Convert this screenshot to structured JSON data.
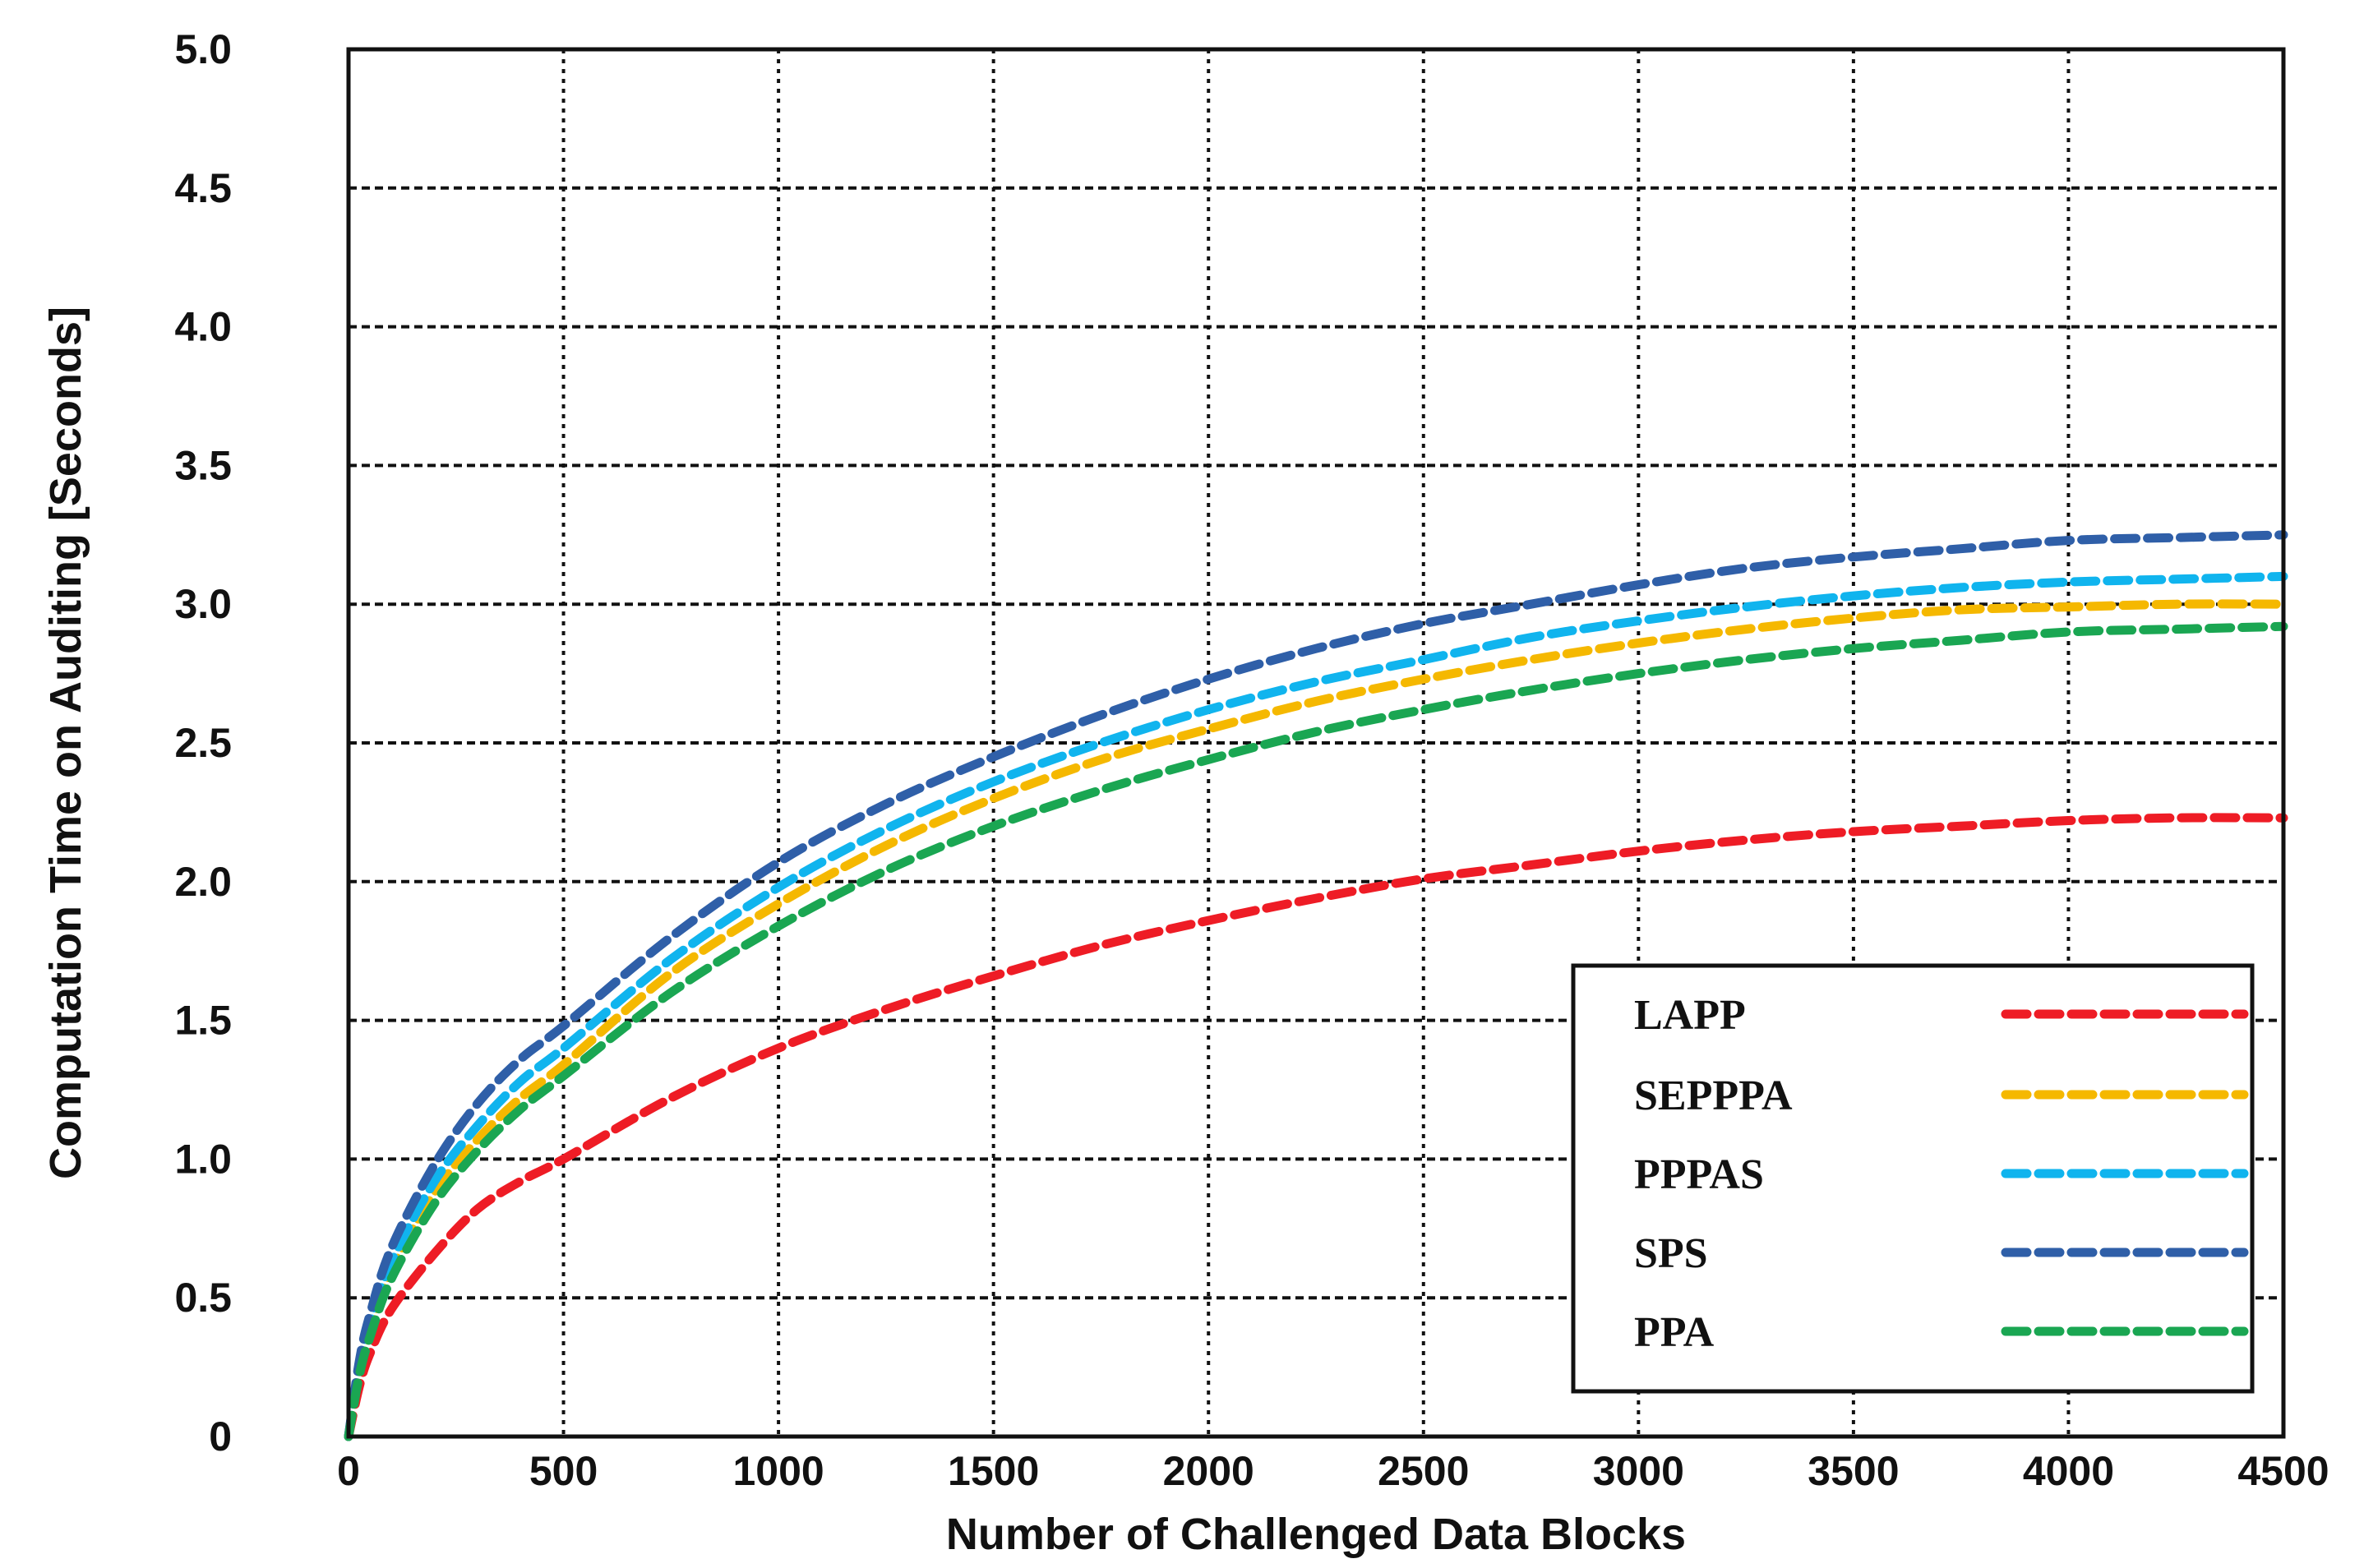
{
  "chart_data": {
    "type": "line",
    "title": "",
    "xlabel": "Number of Challenged Data Blocks",
    "ylabel": "Computation Time on Auditing [Seconds]",
    "xlim": [
      0,
      4500
    ],
    "ylim": [
      0,
      5.0
    ],
    "xticks": [
      "0",
      "500",
      "1000",
      "1500",
      "2000",
      "2500",
      "3000",
      "3500",
      "4000",
      "4500"
    ],
    "yticks": [
      "0",
      "0.5",
      "1.0",
      "1.5",
      "2.0",
      "2.5",
      "3.0",
      "3.5",
      "4.0",
      "4.5",
      "5.0"
    ],
    "grid": true,
    "legend_position": "lower-right",
    "x": [
      0,
      25,
      50,
      100,
      200,
      300,
      400,
      500,
      750,
      1000,
      1250,
      1500,
      1750,
      2000,
      2250,
      2500,
      2750,
      3000,
      3250,
      3500,
      3750,
      4000,
      4250,
      4500
    ],
    "series": [
      {
        "name": "LAPP",
        "color": "#ee1c25",
        "values": [
          0,
          0.18,
          0.3,
          0.46,
          0.66,
          0.82,
          0.92,
          1.0,
          1.22,
          1.4,
          1.54,
          1.66,
          1.77,
          1.86,
          1.94,
          2.01,
          2.06,
          2.11,
          2.15,
          2.18,
          2.2,
          2.22,
          2.23,
          2.23
        ]
      },
      {
        "name": "SEPPPA",
        "color": "#f5b800",
        "values": [
          0,
          0.23,
          0.38,
          0.6,
          0.88,
          1.07,
          1.22,
          1.34,
          1.67,
          1.92,
          2.13,
          2.3,
          2.44,
          2.55,
          2.65,
          2.73,
          2.8,
          2.86,
          2.91,
          2.95,
          2.98,
          2.99,
          3.0,
          3.0
        ]
      },
      {
        "name": "PPPAS",
        "color": "#10b4ee",
        "values": [
          0,
          0.25,
          0.41,
          0.63,
          0.92,
          1.12,
          1.28,
          1.4,
          1.72,
          1.98,
          2.19,
          2.36,
          2.5,
          2.62,
          2.72,
          2.8,
          2.88,
          2.94,
          2.99,
          3.03,
          3.06,
          3.08,
          3.09,
          3.1
        ]
      },
      {
        "name": "SPS",
        "color": "#2f5fa8",
        "values": [
          0,
          0.27,
          0.44,
          0.68,
          0.98,
          1.2,
          1.36,
          1.48,
          1.8,
          2.07,
          2.28,
          2.45,
          2.6,
          2.73,
          2.84,
          2.93,
          3.0,
          3.07,
          3.13,
          3.17,
          3.2,
          3.23,
          3.24,
          3.25
        ]
      },
      {
        "name": "PPA",
        "color": "#1aa652",
        "values": [
          0,
          0.22,
          0.36,
          0.57,
          0.84,
          1.03,
          1.18,
          1.3,
          1.6,
          1.84,
          2.04,
          2.2,
          2.33,
          2.44,
          2.54,
          2.62,
          2.69,
          2.75,
          2.8,
          2.84,
          2.87,
          2.9,
          2.91,
          2.92
        ]
      }
    ]
  }
}
